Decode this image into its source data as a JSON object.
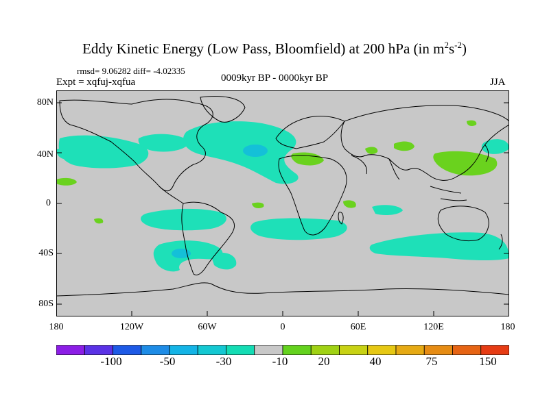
{
  "title_main": "Eddy Kinetic Energy (Low Pass, Bloomfield) at 200 hPa (in m",
  "title_sup1": "2",
  "title_mid": "s",
  "title_sup2": "-2",
  "title_end": ")",
  "stats": "rmsd= 9.06282 diff= -4.02335",
  "expt": "Expt = xqfuj-xqfua",
  "period": "0009kyr BP - 0000kyr BP",
  "season": "JJA",
  "lat_labels": [
    "80N",
    "40N",
    "0",
    "40S",
    "80S"
  ],
  "lon_labels": [
    "180",
    "120W",
    "60W",
    "0",
    "60E",
    "120E",
    "180"
  ],
  "colorbar": {
    "labels": [
      "-100",
      "-50",
      "-30",
      "-10",
      "20",
      "40",
      "75",
      "150"
    ],
    "colors": [
      "#8c1ee6",
      "#5a32e6",
      "#1e5ae6",
      "#1e8ce6",
      "#14b4e6",
      "#14c8d2",
      "#14dcb4",
      "#c8c8c8",
      "#64d21e",
      "#a0d214",
      "#c8d214",
      "#e6c814",
      "#e6aa14",
      "#e68c14",
      "#e66414",
      "#e63c14"
    ]
  },
  "map": {
    "background_color": "#c8c8c8",
    "negative_color": "#1ee0b8",
    "strong_negative_color": "#14c0d8",
    "positive_color": "#6ad21e"
  }
}
